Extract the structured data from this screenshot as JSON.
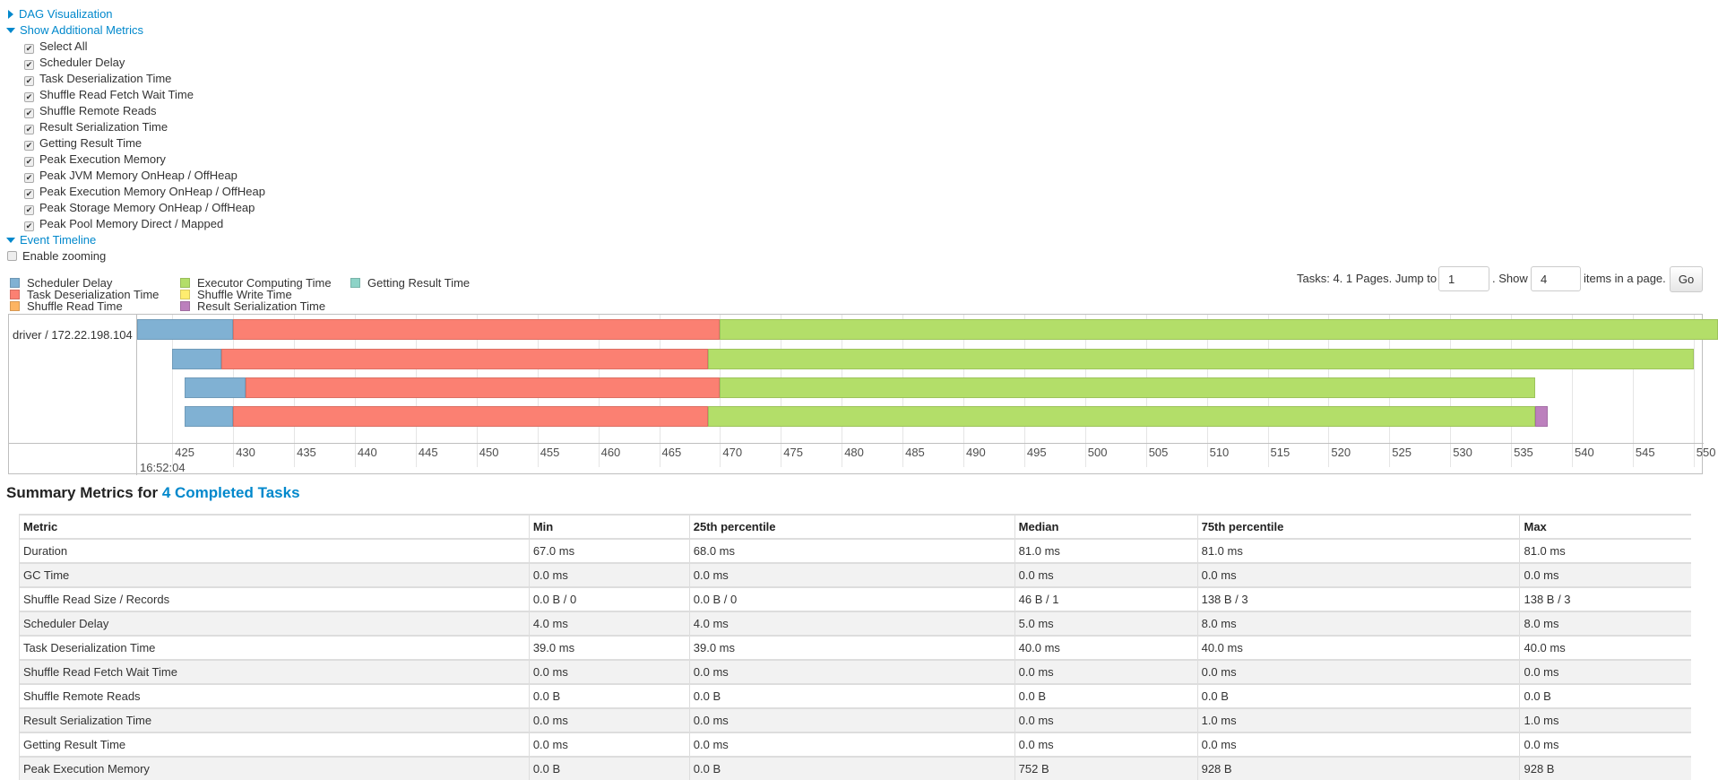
{
  "sections": {
    "dag": "DAG Visualization",
    "metrics": "Show Additional Metrics",
    "timeline": "Event Timeline"
  },
  "metric_options": [
    {
      "label": "Select All",
      "checked": true
    },
    {
      "label": "Scheduler Delay",
      "checked": true
    },
    {
      "label": "Task Deserialization Time",
      "checked": true
    },
    {
      "label": "Shuffle Read Fetch Wait Time",
      "checked": true
    },
    {
      "label": "Shuffle Remote Reads",
      "checked": true
    },
    {
      "label": "Result Serialization Time",
      "checked": true
    },
    {
      "label": "Getting Result Time",
      "checked": true
    },
    {
      "label": "Peak Execution Memory",
      "checked": true
    },
    {
      "label": "Peak JVM Memory OnHeap / OffHeap",
      "checked": true
    },
    {
      "label": "Peak Execution Memory OnHeap / OffHeap",
      "checked": true
    },
    {
      "label": "Peak Storage Memory OnHeap / OffHeap",
      "checked": true
    },
    {
      "label": "Peak Pool Memory Direct / Mapped",
      "checked": true
    }
  ],
  "enable_zooming": {
    "label": "Enable zooming",
    "checked": false
  },
  "legend": [
    {
      "label": "Scheduler Delay",
      "color": "#80b1d3"
    },
    {
      "label": "Task Deserialization Time",
      "color": "#fb8072"
    },
    {
      "label": "Shuffle Read Time",
      "color": "#fdb462"
    },
    {
      "label": "Executor Computing Time",
      "color": "#b3de69"
    },
    {
      "label": "Shuffle Write Time",
      "color": "#ffed6f"
    },
    {
      "label": "Result Serialization Time",
      "color": "#bc80bd"
    },
    {
      "label": "Getting Result Time",
      "color": "#8dd3c7"
    }
  ],
  "pagination": {
    "text1": "Tasks: 4. 1 Pages. Jump to",
    "page": "1",
    "text2": ". Show",
    "page_size": "4",
    "text3": "items in a page.",
    "go": "Go"
  },
  "timeline": {
    "executor_label": "driver / 172.22.198.104",
    "date_label": "16:52:04",
    "axis_range_ms": [
      422,
      552
    ],
    "ticks": [
      425,
      430,
      435,
      440,
      445,
      450,
      455,
      460,
      465,
      470,
      475,
      480,
      485,
      490,
      495,
      500,
      505,
      510,
      515,
      520,
      525,
      530,
      535,
      540,
      545,
      550
    ],
    "tasks": [
      {
        "segments": [
          {
            "phase": "Scheduler Delay",
            "start": 422,
            "end": 430
          },
          {
            "phase": "Task Deserialization Time",
            "start": 430,
            "end": 470
          },
          {
            "phase": "Executor Computing Time",
            "start": 470,
            "end": 552
          }
        ]
      },
      {
        "segments": [
          {
            "phase": "Scheduler Delay",
            "start": 425,
            "end": 429
          },
          {
            "phase": "Task Deserialization Time",
            "start": 429,
            "end": 469
          },
          {
            "phase": "Executor Computing Time",
            "start": 469,
            "end": 550
          }
        ]
      },
      {
        "segments": [
          {
            "phase": "Scheduler Delay",
            "start": 426,
            "end": 431
          },
          {
            "phase": "Task Deserialization Time",
            "start": 431,
            "end": 470
          },
          {
            "phase": "Executor Computing Time",
            "start": 470,
            "end": 537
          }
        ]
      },
      {
        "segments": [
          {
            "phase": "Scheduler Delay",
            "start": 426,
            "end": 430
          },
          {
            "phase": "Task Deserialization Time",
            "start": 430,
            "end": 469
          },
          {
            "phase": "Executor Computing Time",
            "start": 469,
            "end": 537
          },
          {
            "phase": "Result Serialization Time",
            "start": 537,
            "end": 538
          }
        ]
      }
    ]
  },
  "summary": {
    "title": "Summary Metrics for ",
    "link": "4 Completed Tasks",
    "headers": [
      "Metric",
      "Min",
      "25th percentile",
      "Median",
      "75th percentile",
      "Max"
    ],
    "rows": [
      [
        "Duration",
        "67.0 ms",
        "68.0 ms",
        "81.0 ms",
        "81.0 ms",
        "81.0 ms"
      ],
      [
        "GC Time",
        "0.0 ms",
        "0.0 ms",
        "0.0 ms",
        "0.0 ms",
        "0.0 ms"
      ],
      [
        "Shuffle Read Size / Records",
        "0.0 B / 0",
        "0.0 B / 0",
        "46 B / 1",
        "138 B / 3",
        "138 B / 3"
      ],
      [
        "Scheduler Delay",
        "4.0 ms",
        "4.0 ms",
        "5.0 ms",
        "8.0 ms",
        "8.0 ms"
      ],
      [
        "Task Deserialization Time",
        "39.0 ms",
        "39.0 ms",
        "40.0 ms",
        "40.0 ms",
        "40.0 ms"
      ],
      [
        "Shuffle Read Fetch Wait Time",
        "0.0 ms",
        "0.0 ms",
        "0.0 ms",
        "0.0 ms",
        "0.0 ms"
      ],
      [
        "Shuffle Remote Reads",
        "0.0 B",
        "0.0 B",
        "0.0 B",
        "0.0 B",
        "0.0 B"
      ],
      [
        "Result Serialization Time",
        "0.0 ms",
        "0.0 ms",
        "0.0 ms",
        "1.0 ms",
        "1.0 ms"
      ],
      [
        "Getting Result Time",
        "0.0 ms",
        "0.0 ms",
        "0.0 ms",
        "0.0 ms",
        "0.0 ms"
      ],
      [
        "Peak Execution Memory",
        "0.0 B",
        "0.0 B",
        "752 B",
        "928 B",
        "928 B"
      ]
    ]
  }
}
